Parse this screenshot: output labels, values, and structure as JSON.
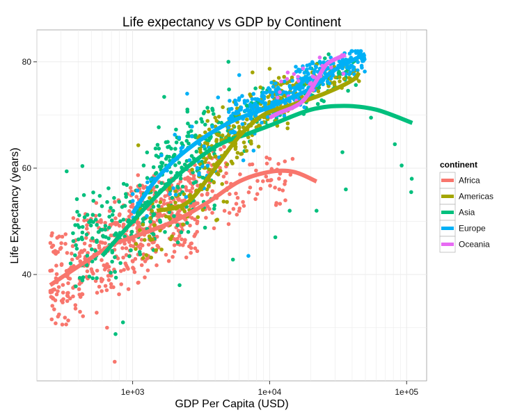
{
  "chart_data": {
    "type": "scatter",
    "title": "Life expectancy vs GDP by Continent",
    "xlabel": "GDP Per Capita (USD)",
    "ylabel": "Life Expectancy (years)",
    "x_scale": "log10",
    "xlim": [
      200,
      140000
    ],
    "ylim": [
      20,
      86
    ],
    "x_ticks": [
      {
        "value": 1000,
        "label": "1e+03"
      },
      {
        "value": 10000,
        "label": "1e+04"
      },
      {
        "value": 100000,
        "label": "1e+05"
      }
    ],
    "y_ticks": [
      {
        "value": 40,
        "label": "40"
      },
      {
        "value": 60,
        "label": "60"
      },
      {
        "value": 80,
        "label": "80"
      }
    ],
    "grid": true,
    "legend": {
      "title": "continent",
      "position": "right"
    },
    "series": [
      {
        "name": "Africa",
        "color": "#F8766D",
        "smooth": [
          [
            250,
            38
          ],
          [
            400,
            41.5
          ],
          [
            700,
            45.5
          ],
          [
            1000,
            47
          ],
          [
            2000,
            50
          ],
          [
            3500,
            53.5
          ],
          [
            6000,
            57.5
          ],
          [
            10000,
            59.3
          ],
          [
            15000,
            59.3
          ],
          [
            22000,
            57.5
          ]
        ],
        "clusters": [
          {
            "x": [
              250,
              3000
            ],
            "y": [
              28,
              58
            ],
            "n": 480
          },
          {
            "x": [
              800,
              5000
            ],
            "y": [
              44,
              64
            ],
            "n": 90
          },
          {
            "x": [
              3000,
              15000
            ],
            "y": [
              45,
              62
            ],
            "n": 60
          }
        ],
        "points": [
          [
            740,
            23.6
          ],
          [
            290,
            32.5
          ],
          [
            650,
            30
          ],
          [
            300,
            45
          ],
          [
            500,
            41
          ]
        ]
      },
      {
        "name": "Americas",
        "color": "#A3A500",
        "smooth": [
          [
            1500,
            52
          ],
          [
            2500,
            53.5
          ],
          [
            4000,
            60
          ],
          [
            6000,
            66
          ],
          [
            9000,
            70
          ],
          [
            15000,
            72
          ],
          [
            25000,
            74
          ],
          [
            40000,
            76.5
          ],
          [
            45000,
            78
          ]
        ],
        "clusters": [
          {
            "x": [
              1000,
              5000
            ],
            "y": [
              40,
              62
            ],
            "n": 90
          },
          {
            "x": [
              3000,
              15000
            ],
            "y": [
              56,
              76
            ],
            "n": 180
          },
          {
            "x": [
              10000,
              45000
            ],
            "y": [
              70,
              80
            ],
            "n": 90
          }
        ],
        "points": [
          [
            10000,
            78.7
          ],
          [
            7500,
            78
          ],
          [
            22000,
            79.5
          ],
          [
            1100,
            64.3
          ]
        ]
      },
      {
        "name": "Asia",
        "color": "#00BF7D",
        "smooth": [
          [
            600,
            43.5
          ],
          [
            1000,
            50
          ],
          [
            2000,
            58
          ],
          [
            4000,
            64
          ],
          [
            7000,
            66.5
          ],
          [
            10000,
            68
          ],
          [
            20000,
            71
          ],
          [
            35000,
            71.7
          ],
          [
            60000,
            71
          ],
          [
            110000,
            68.5
          ]
        ],
        "clusters": [
          {
            "x": [
              350,
              4000
            ],
            "y": [
              33,
              66
            ],
            "n": 250
          },
          {
            "x": [
              1500,
              10000
            ],
            "y": [
              55,
              75
            ],
            "n": 110
          },
          {
            "x": [
              10000,
              45000
            ],
            "y": [
              66,
              82
            ],
            "n": 70
          }
        ],
        "points": [
          [
            109000,
            58
          ],
          [
            92000,
            60.5
          ],
          [
            82000,
            64.5
          ],
          [
            108000,
            55.5
          ],
          [
            55000,
            69.5
          ],
          [
            34000,
            63
          ],
          [
            36000,
            56
          ],
          [
            22000,
            52
          ],
          [
            14000,
            52
          ],
          [
            11000,
            47
          ],
          [
            750,
            28.8
          ],
          [
            850,
            31
          ],
          [
            5400,
            42.8
          ],
          [
            2200,
            38
          ],
          [
            330,
            59.4
          ],
          [
            430,
            60.4
          ],
          [
            1700,
            73.4
          ],
          [
            5000,
            80
          ]
        ]
      },
      {
        "name": "Europe",
        "color": "#00B0F6",
        "smooth": [
          [
            1000,
            51.5
          ],
          [
            1500,
            58
          ],
          [
            2500,
            63.5
          ],
          [
            5000,
            68.5
          ],
          [
            10000,
            71.5
          ],
          [
            20000,
            75
          ],
          [
            30000,
            78.5
          ],
          [
            50000,
            81.5
          ]
        ],
        "clusters": [
          {
            "x": [
              900,
              8000
            ],
            "y": [
              43,
              73
            ],
            "n": 60
          },
          {
            "x": [
              5000,
              20000
            ],
            "y": [
              66,
              77
            ],
            "n": 160
          },
          {
            "x": [
              15000,
              50000
            ],
            "y": [
              73,
              82
            ],
            "n": 140
          }
        ],
        "points": [
          [
            6000,
            77.5
          ],
          [
            4200,
            73.3
          ],
          [
            2500,
            74
          ],
          [
            7000,
            43.5
          ]
        ]
      },
      {
        "name": "Oceania",
        "color": "#E76BF3",
        "smooth": [
          [
            10000,
            69.5
          ],
          [
            12000,
            70.5
          ],
          [
            15000,
            71.5
          ],
          [
            18000,
            73
          ],
          [
            22000,
            76.5
          ],
          [
            26000,
            79.5
          ],
          [
            32000,
            80.8
          ],
          [
            36000,
            81.3
          ]
        ],
        "clusters": [
          {
            "x": [
              10000,
              35000
            ],
            "y": [
              69,
              81.5
            ],
            "n": 24
          }
        ],
        "points": [
          [
            34500,
            81.2
          ],
          [
            30000,
            80.5
          ],
          [
            25000,
            79
          ],
          [
            20000,
            76
          ],
          [
            12000,
            70.8
          ]
        ]
      }
    ]
  }
}
